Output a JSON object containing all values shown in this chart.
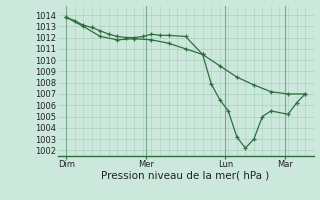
{
  "background_color": "#cce8dc",
  "grid_color": "#aacfbe",
  "line_color": "#2d6e3e",
  "marker_color": "#2d6e3e",
  "ylabel_ticks": [
    1002,
    1003,
    1004,
    1005,
    1006,
    1007,
    1008,
    1009,
    1010,
    1011,
    1012,
    1013,
    1014
  ],
  "ylim": [
    1001.5,
    1014.8
  ],
  "xlabel": "Pression niveau de la mer( hPa )",
  "day_labels": [
    "Dim",
    "Mer",
    "Lun",
    "Mar"
  ],
  "day_positions": [
    0,
    28,
    56,
    77
  ],
  "total_points": 91,
  "series1_x": [
    0,
    3,
    6,
    9,
    12,
    15,
    18,
    21,
    24,
    27,
    30,
    33,
    36,
    42,
    48,
    51,
    54,
    57,
    60,
    63,
    66,
    69,
    72,
    78,
    81,
    84
  ],
  "series1_y": [
    1013.8,
    1013.5,
    1013.1,
    1012.9,
    1012.6,
    1012.3,
    1012.1,
    1012.0,
    1012.0,
    1012.1,
    1012.3,
    1012.2,
    1012.2,
    1012.1,
    1010.5,
    1007.9,
    1006.5,
    1005.5,
    1003.2,
    1002.2,
    1003.0,
    1005.0,
    1005.5,
    1005.2,
    1006.2,
    1007.0
  ],
  "series2_x": [
    0,
    6,
    12,
    18,
    24,
    30,
    36,
    42,
    48,
    54,
    60,
    66,
    72,
    78,
    84
  ],
  "series2_y": [
    1013.8,
    1013.0,
    1012.1,
    1011.8,
    1011.9,
    1011.8,
    1011.5,
    1011.0,
    1010.5,
    1009.5,
    1008.5,
    1007.8,
    1007.2,
    1007.0,
    1007.0
  ],
  "xlim": [
    -3,
    87
  ],
  "vline_positions": [
    0,
    28,
    56,
    77
  ],
  "tick_fontsize": 6,
  "xlabel_fontsize": 7.5
}
